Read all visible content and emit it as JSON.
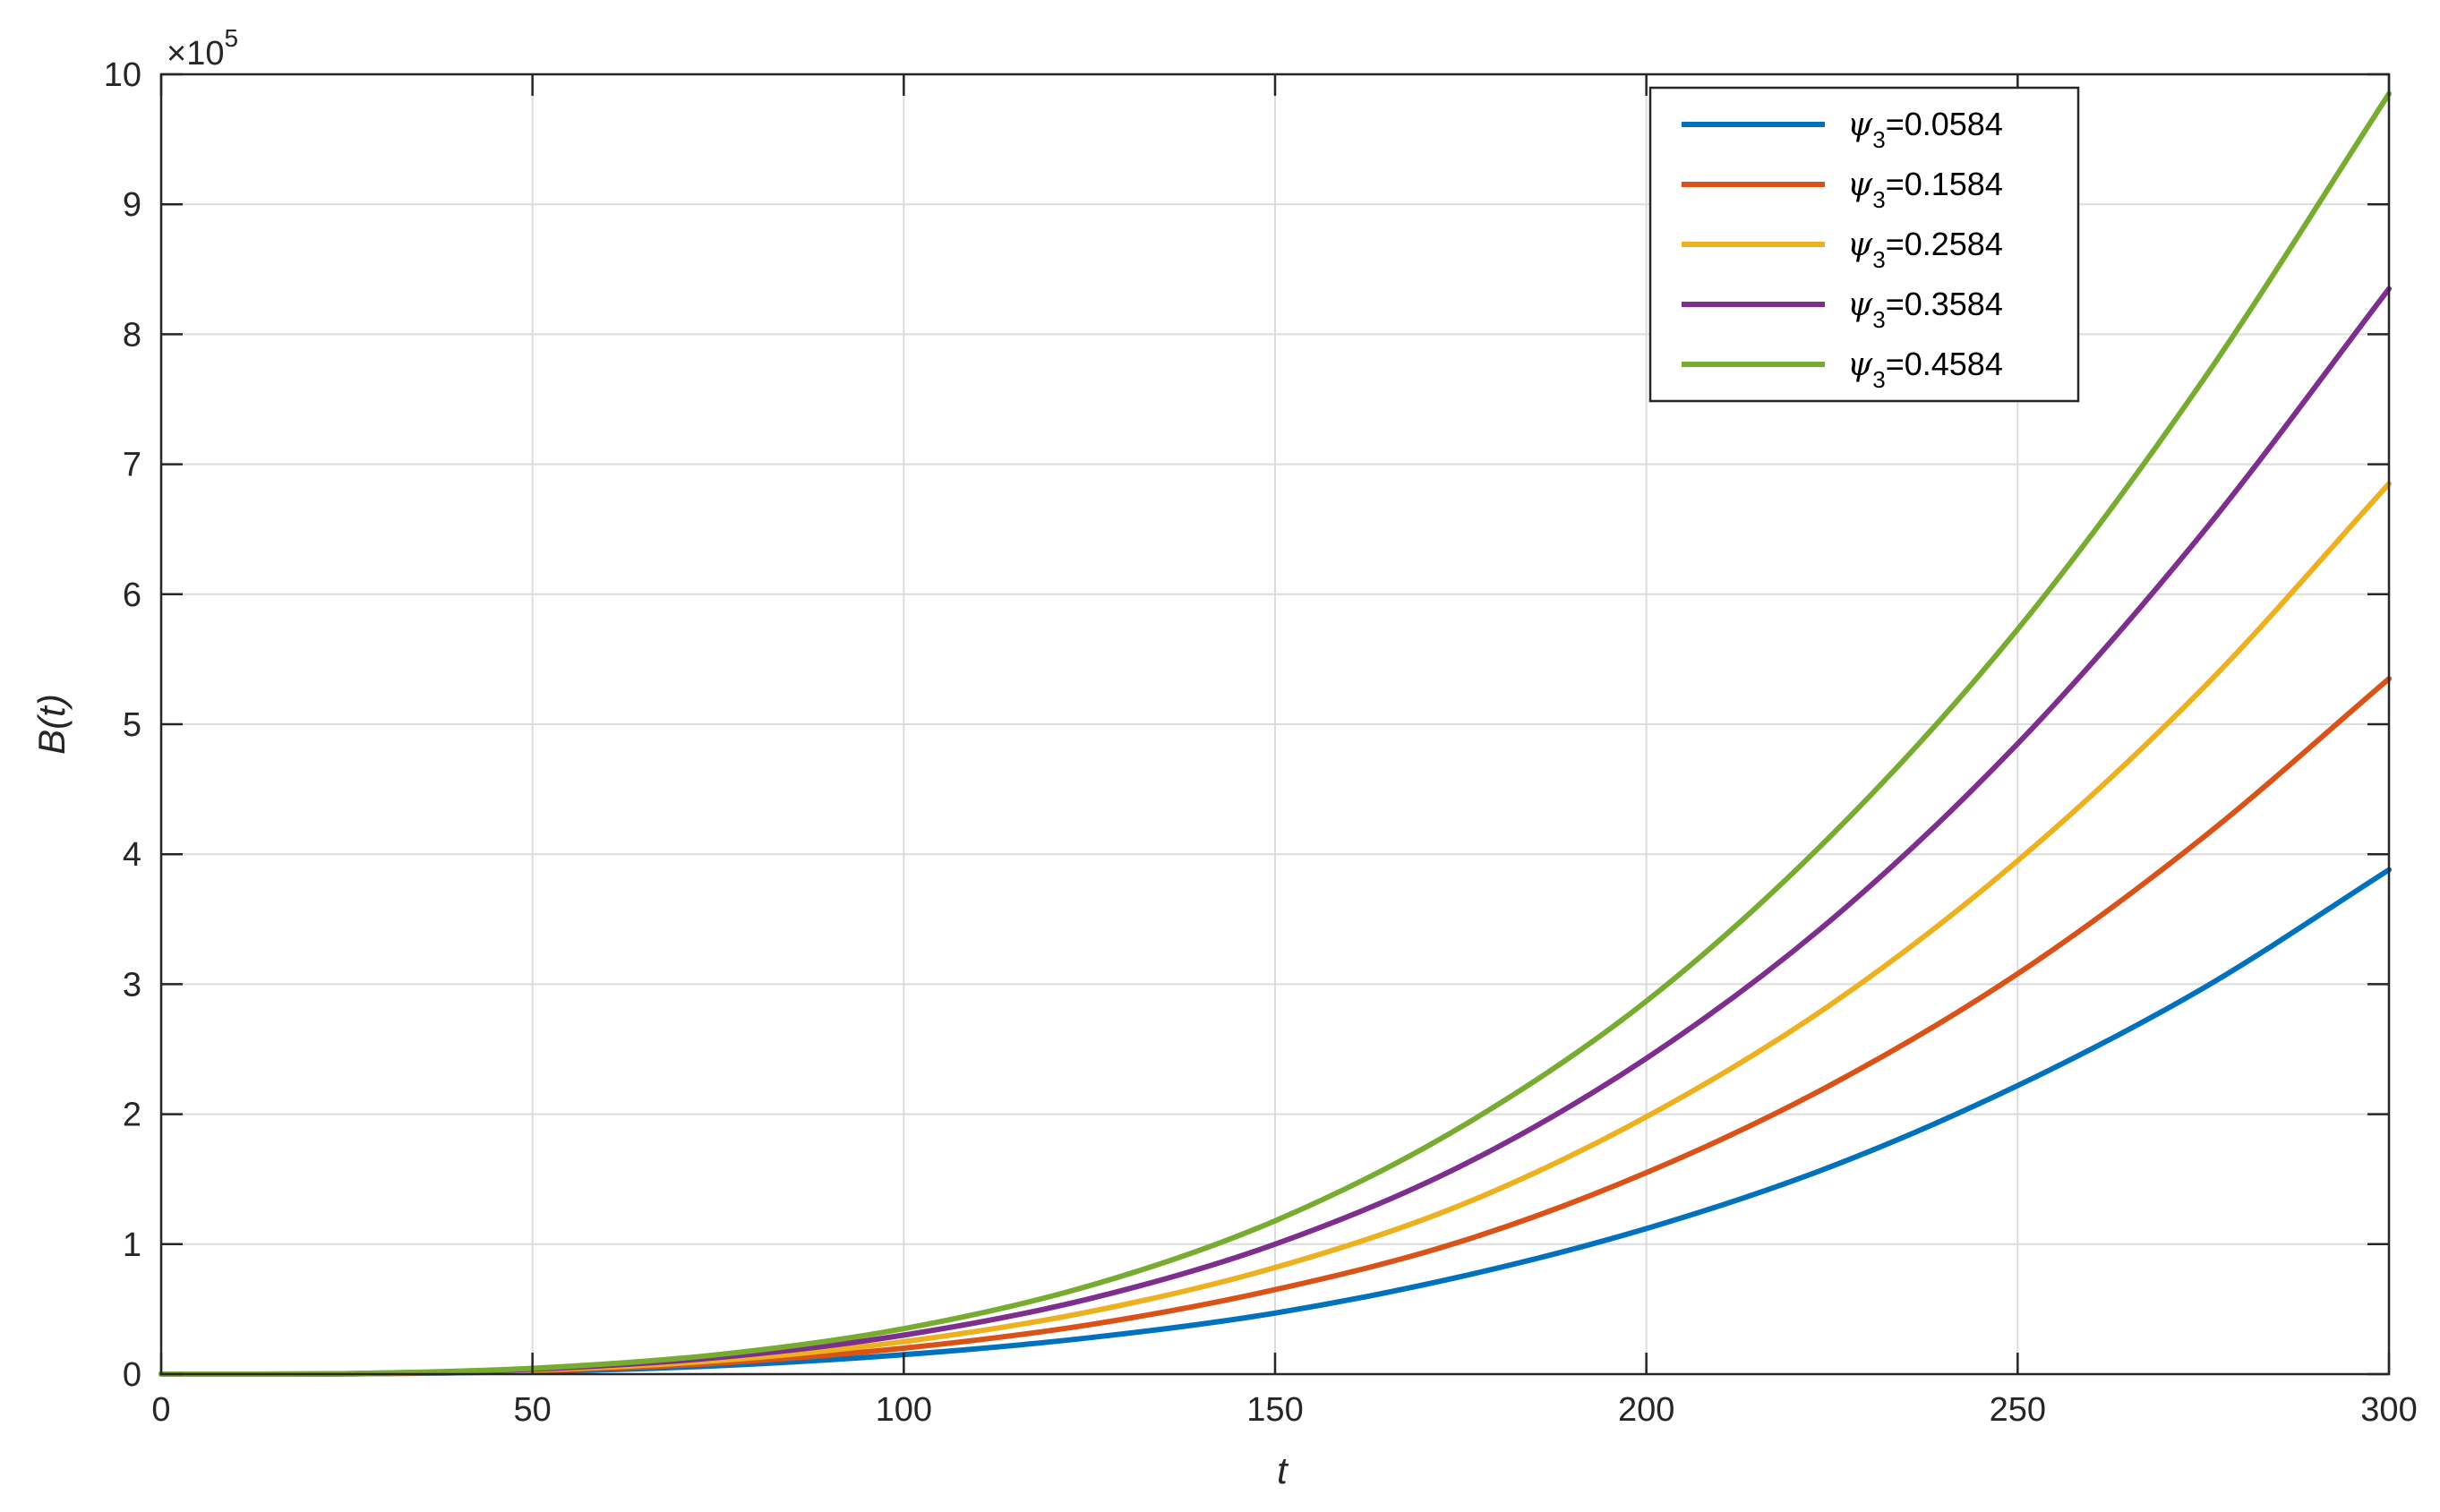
{
  "chart_data": {
    "type": "line",
    "xlabel": "t",
    "ylabel": "B(t)",
    "xlim": [
      0,
      300
    ],
    "ylim": [
      0,
      1000000
    ],
    "x_ticks": [
      "0",
      "50",
      "100",
      "150",
      "200",
      "250",
      "300"
    ],
    "y_ticks": [
      "0",
      "1",
      "2",
      "3",
      "4",
      "5",
      "6",
      "7",
      "8",
      "9",
      "10"
    ],
    "y_multiplier": {
      "base": "×10",
      "exponent": "5"
    },
    "grid": true,
    "legend_position": "top-right",
    "x": [
      0,
      25,
      50,
      75,
      100,
      125,
      150,
      175,
      200,
      225,
      250,
      275,
      300
    ],
    "series": [
      {
        "name": "ψ3=0.0584",
        "legend_symbol": "ψ",
        "legend_sub": "3",
        "legend_value": "=0.0584",
        "color": "#0072bd",
        "values": [
          0,
          200,
          2000,
          6500,
          15000,
          28000,
          47000,
          75000,
          112000,
          160000,
          222000,
          297000,
          388000
        ]
      },
      {
        "name": "ψ3=0.1584",
        "legend_symbol": "ψ",
        "legend_sub": "3",
        "legend_value": "=0.1584",
        "color": "#d95319",
        "values": [
          0,
          250,
          2600,
          8500,
          20000,
          38000,
          65000,
          102000,
          155000,
          223000,
          308000,
          413000,
          535000
        ]
      },
      {
        "name": "ψ3=0.2584",
        "legend_symbol": "ψ",
        "legend_sub": "3",
        "legend_value": "=0.2584",
        "color": "#edb120",
        "values": [
          0,
          300,
          3200,
          10500,
          25000,
          48000,
          82000,
          130000,
          198000,
          285000,
          395000,
          528000,
          685000
        ]
      },
      {
        "name": "ψ3=0.3584",
        "legend_symbol": "ψ",
        "legend_sub": "3",
        "legend_value": "=0.3584",
        "color": "#7e2f8e",
        "values": [
          0,
          350,
          3800,
          12800,
          30000,
          58000,
          100000,
          160000,
          243000,
          350000,
          485000,
          648000,
          835000
        ]
      },
      {
        "name": "ψ3=0.4584",
        "legend_symbol": "ψ",
        "legend_sub": "3",
        "legend_value": "=0.4584",
        "color": "#77ac30",
        "values": [
          0,
          400,
          4500,
          15000,
          35000,
          68000,
          118000,
          190000,
          287000,
          415000,
          573000,
          765000,
          985000
        ]
      }
    ]
  }
}
